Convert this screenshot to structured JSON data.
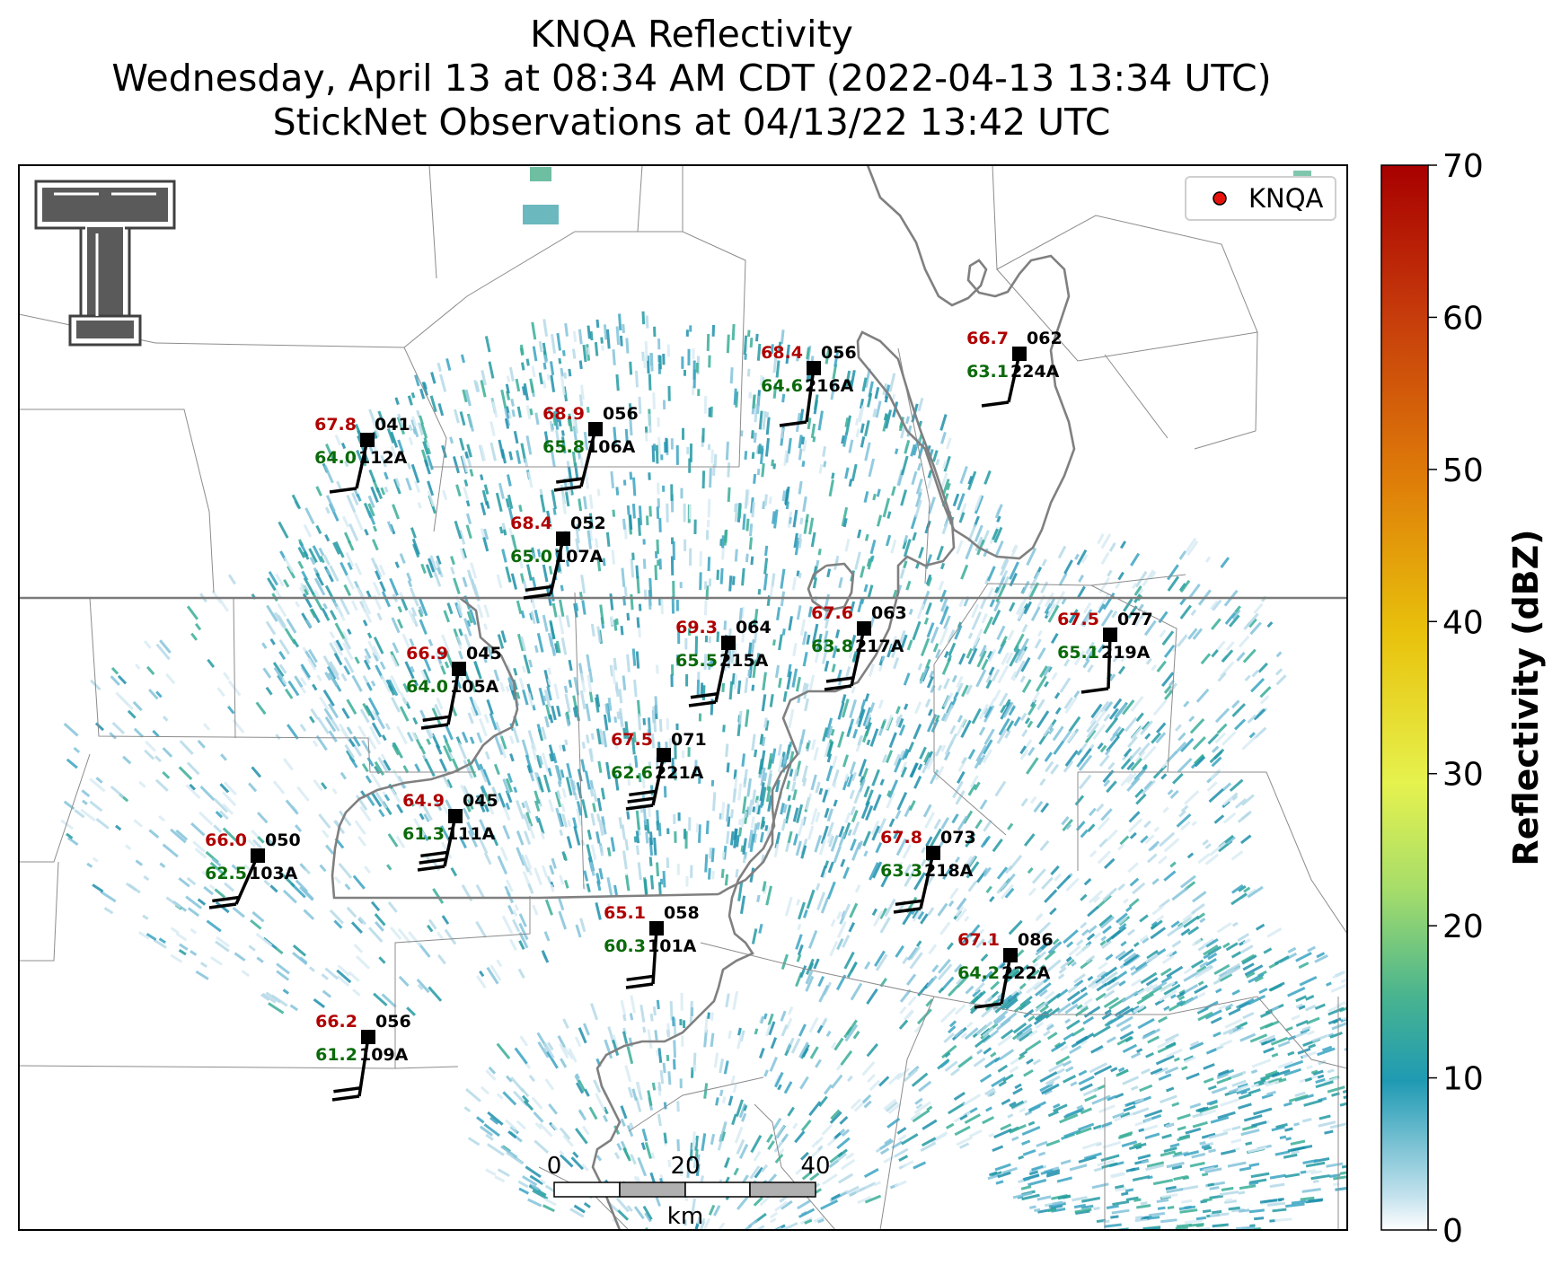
{
  "title": {
    "line1": "KNQA Reflectivity",
    "line2": "Wednesday, April 13 at 08:34 AM CDT (2022-04-13 13:34 UTC)",
    "line3": "StickNet Observations at 04/13/22 13:42 UTC"
  },
  "legend": {
    "label": "KNQA",
    "marker_color": "#e8120c"
  },
  "colorbar": {
    "label": "Reflectivity (dBZ)",
    "range": [
      0,
      70
    ],
    "ticks": [
      "0",
      "10",
      "20",
      "30",
      "40",
      "50",
      "60",
      "70"
    ],
    "colors": [
      "#ffffff",
      "#c6e3ee",
      "#1f9ab3",
      "#49b48f",
      "#a6dd6a",
      "#e6f24e",
      "#e8c20c",
      "#df7f09",
      "#c63b0b",
      "#a80000"
    ]
  },
  "scale_bar": {
    "ticks": [
      "0",
      "20",
      "40"
    ],
    "unit": "km"
  },
  "logo": {
    "name": "texas-tech-double-t-logo",
    "letter": "T"
  },
  "label_colors": {
    "temperature": "#b00000",
    "dewpoint": "#0a6a0a",
    "id": "#000000"
  },
  "stations": [
    {
      "id": "112A",
      "temp": "67.8",
      "dew": "64.0",
      "pressure": "041"
    },
    {
      "id": "106A",
      "temp": "68.9",
      "dew": "65.8",
      "pressure": "056"
    },
    {
      "id": "216A",
      "temp": "68.4",
      "dew": "64.6",
      "pressure": "056"
    },
    {
      "id": "224A",
      "temp": "66.7",
      "dew": "63.1",
      "pressure": "062"
    },
    {
      "id": "107A",
      "temp": "68.4",
      "dew": "65.0",
      "pressure": "052"
    },
    {
      "id": "105A",
      "temp": "66.9",
      "dew": "64.0",
      "pressure": "045"
    },
    {
      "id": "215A",
      "temp": "69.3",
      "dew": "65.5",
      "pressure": "064"
    },
    {
      "id": "217A",
      "temp": "67.6",
      "dew": "63.8",
      "pressure": "063"
    },
    {
      "id": "219A",
      "temp": "67.5",
      "dew": "65.1",
      "pressure": "077"
    },
    {
      "id": "221A",
      "temp": "67.5",
      "dew": "62.6",
      "pressure": "071"
    },
    {
      "id": "111A",
      "temp": "64.9",
      "dew": "61.3",
      "pressure": "045"
    },
    {
      "id": "103A",
      "temp": "66.0",
      "dew": "62.5",
      "pressure": "050"
    },
    {
      "id": "218A",
      "temp": "67.8",
      "dew": "63.3",
      "pressure": "073"
    },
    {
      "id": "101A",
      "temp": "65.1",
      "dew": "60.3",
      "pressure": "058"
    },
    {
      "id": "222A",
      "temp": "67.1",
      "dew": "64.2",
      "pressure": "086"
    },
    {
      "id": "109A",
      "temp": "66.2",
      "dew": "61.2",
      "pressure": "056"
    }
  ]
}
